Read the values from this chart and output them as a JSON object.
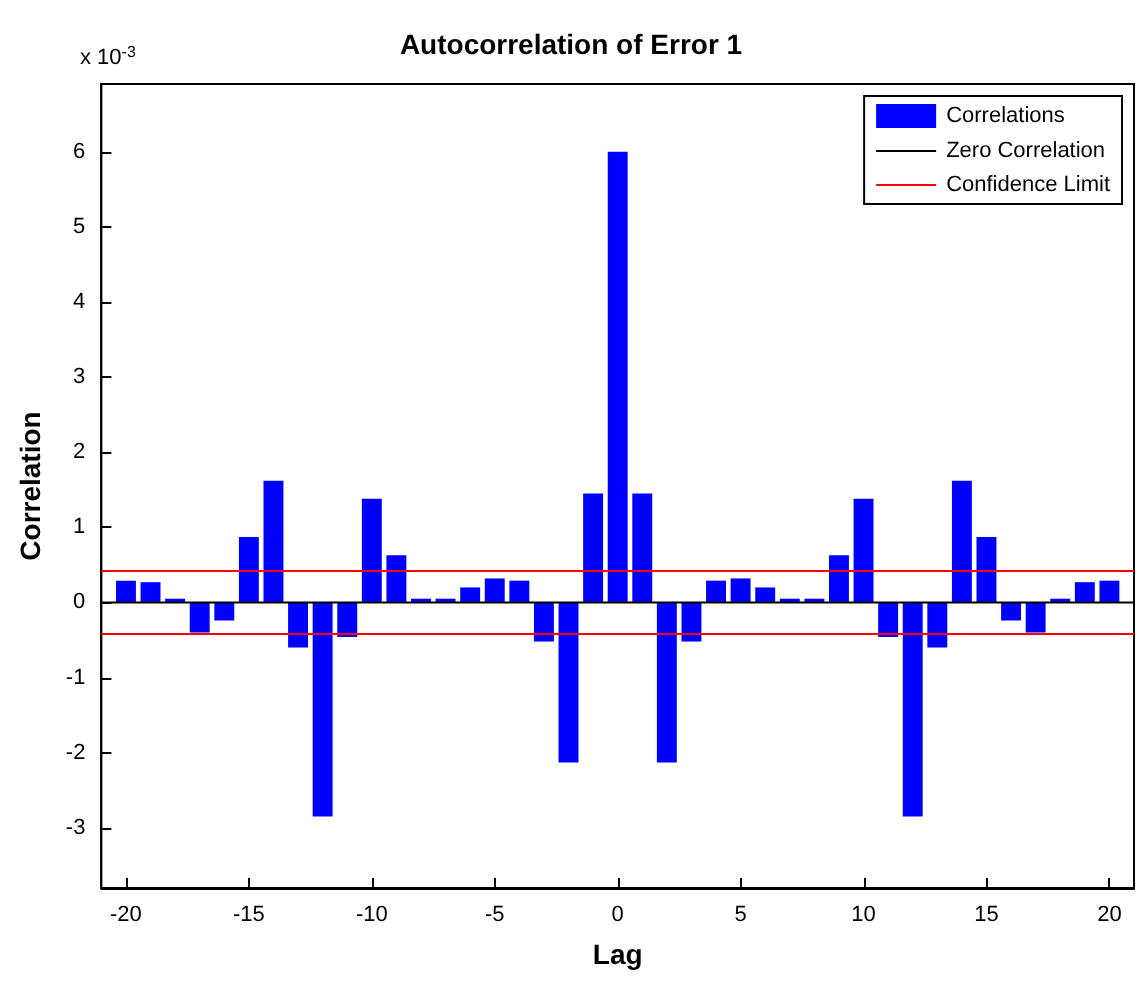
{
  "chart_data": {
    "type": "bar",
    "title": "Autocorrelation of Error 1",
    "xlabel": "Lag",
    "ylabel": "Correlation",
    "annotations": [
      "x 10$^{-3}$"
    ],
    "x": [
      -20,
      -19,
      -18,
      -17,
      -16,
      -15,
      -14,
      -13,
      -12,
      -11,
      -10,
      -9,
      -8,
      -7,
      -6,
      -5,
      -4,
      -3,
      -2,
      -1,
      0,
      1,
      2,
      3,
      4,
      5,
      6,
      7,
      8,
      9,
      10,
      11,
      12,
      13,
      14,
      15,
      16,
      17,
      18,
      19,
      20
    ],
    "series": [
      {
        "name": "Correlations",
        "color": "#0000ff",
        "values": [
          0.29,
          0.27,
          0.05,
          -0.4,
          -0.24,
          0.87,
          1.62,
          -0.6,
          -2.85,
          -0.46,
          1.38,
          0.63,
          0.05,
          0.05,
          0.2,
          0.32,
          0.29,
          -0.52,
          -2.13,
          1.45,
          6.0,
          1.45,
          -2.13,
          -0.52,
          0.29,
          0.32,
          0.2,
          0.05,
          0.05,
          0.63,
          1.38,
          -0.46,
          -2.85,
          -0.6,
          1.62,
          0.87,
          -0.24,
          -0.4,
          0.05,
          0.27,
          0.29
        ]
      }
    ],
    "ref_lines": [
      {
        "axis": "y",
        "value": 0,
        "label": "Zero Correlation",
        "color": "#000000"
      },
      {
        "axis": "y",
        "value": 0.42,
        "label": "Confidence Limit",
        "color": "#ff0000"
      },
      {
        "axis": "y",
        "value": -0.42,
        "color": "#ff0000"
      }
    ],
    "xlim": [
      -21,
      21
    ],
    "xticks": [
      -20,
      -15,
      -10,
      -5,
      0,
      5,
      10,
      15,
      20
    ],
    "ylim": [
      -3.8,
      6.9
    ],
    "yticks": [
      -3,
      -2,
      -1,
      0,
      1,
      2,
      3,
      4,
      5,
      6
    ],
    "grid": false,
    "legend": "top right"
  }
}
